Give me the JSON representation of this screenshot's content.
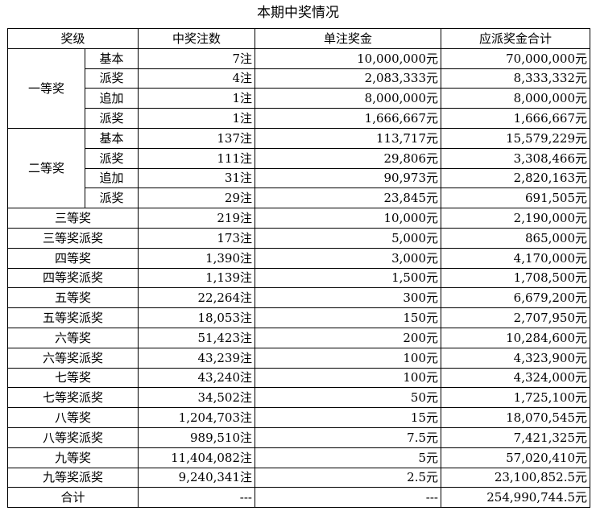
{
  "title": "本期中奖情况",
  "headers": {
    "level": "奖级",
    "count": "中奖注数",
    "unit": "单注奖金",
    "total": "应派奖金合计"
  },
  "first": {
    "name": "一等奖",
    "rows": [
      {
        "sub": "基本",
        "count": "7注",
        "unit": "10,000,000元",
        "total": "70,000,000元"
      },
      {
        "sub": "派奖",
        "count": "4注",
        "unit": "2,083,333元",
        "total": "8,333,332元"
      },
      {
        "sub": "追加",
        "count": "1注",
        "unit": "8,000,000元",
        "total": "8,000,000元"
      },
      {
        "sub": "派奖",
        "count": "1注",
        "unit": "1,666,667元",
        "total": "1,666,667元"
      }
    ]
  },
  "second": {
    "name": "二等奖",
    "rows": [
      {
        "sub": "基本",
        "count": "137注",
        "unit": "113,717元",
        "total": "15,579,229元"
      },
      {
        "sub": "派奖",
        "count": "111注",
        "unit": "29,806元",
        "total": "3,308,466元"
      },
      {
        "sub": "追加",
        "count": "31注",
        "unit": "90,973元",
        "total": "2,820,163元"
      },
      {
        "sub": "派奖",
        "count": "29注",
        "unit": "23,845元",
        "total": "691,505元"
      }
    ]
  },
  "rows": [
    {
      "name": "三等奖",
      "count": "219注",
      "unit": "10,000元",
      "total": "2,190,000元"
    },
    {
      "name": "三等奖派奖",
      "count": "173注",
      "unit": "5,000元",
      "total": "865,000元"
    },
    {
      "name": "四等奖",
      "count": "1,390注",
      "unit": "3,000元",
      "total": "4,170,000元"
    },
    {
      "name": "四等奖派奖",
      "count": "1,139注",
      "unit": "1,500元",
      "total": "1,708,500元"
    },
    {
      "name": "五等奖",
      "count": "22,264注",
      "unit": "300元",
      "total": "6,679,200元"
    },
    {
      "name": "五等奖派奖",
      "count": "18,053注",
      "unit": "150元",
      "total": "2,707,950元"
    },
    {
      "name": "六等奖",
      "count": "51,423注",
      "unit": "200元",
      "total": "10,284,600元"
    },
    {
      "name": "六等奖派奖",
      "count": "43,239注",
      "unit": "100元",
      "total": "4,323,900元"
    },
    {
      "name": "七等奖",
      "count": "43,240注",
      "unit": "100元",
      "total": "4,324,000元"
    },
    {
      "name": "七等奖派奖",
      "count": "34,502注",
      "unit": "50元",
      "total": "1,725,100元"
    },
    {
      "name": "八等奖",
      "count": "1,204,703注",
      "unit": "15元",
      "total": "18,070,545元"
    },
    {
      "name": "八等奖派奖",
      "count": "989,510注",
      "unit": "7.5元",
      "total": "7,421,325元"
    },
    {
      "name": "九等奖",
      "count": "11,404,082注",
      "unit": "5元",
      "total": "57,020,410元"
    },
    {
      "name": "九等奖派奖",
      "count": "9,240,341注",
      "unit": "2.5元",
      "total": "23,100,852.5元"
    }
  ],
  "sum": {
    "name": "合计",
    "count": "---",
    "unit": "---",
    "total": "254,990,744.5元"
  }
}
